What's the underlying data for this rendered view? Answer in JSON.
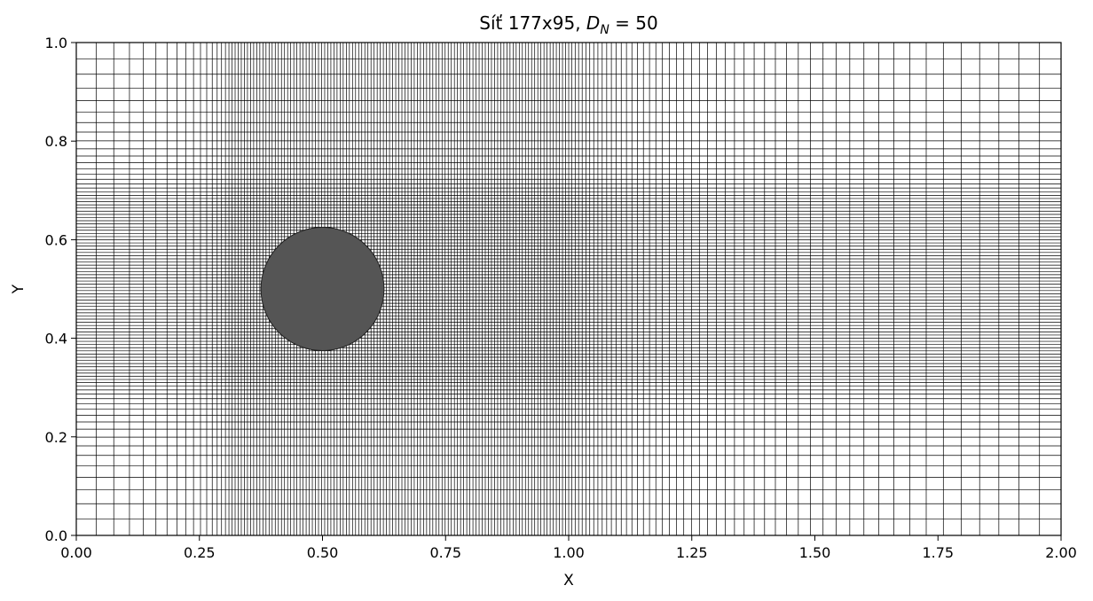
{
  "title": {
    "prefix": "Síť 177x95, ",
    "symbol": "D",
    "subscript": "N",
    "suffix": " = 50"
  },
  "chart_data": {
    "type": "mesh",
    "title": "Síť 177x95, D_N = 50",
    "xlabel": "X",
    "ylabel": "Y",
    "xlim": [
      0.0,
      2.0
    ],
    "ylim": [
      0.0,
      1.0
    ],
    "grid_dimensions": {
      "nx": 177,
      "ny": 95
    },
    "xticks": [
      "0.00",
      "0.25",
      "0.50",
      "0.75",
      "1.00",
      "1.25",
      "1.50",
      "1.75",
      "2.00"
    ],
    "yticks": [
      "0.0",
      "0.2",
      "0.4",
      "0.6",
      "0.8",
      "1.0"
    ],
    "refined_region_x": [
      0.31,
      1.0
    ],
    "refined_region_y": [
      0.31,
      0.69
    ],
    "obstacle": {
      "shape": "circle",
      "center": [
        0.5,
        0.5
      ],
      "diameter": 0.25,
      "fill": "#555555"
    },
    "line_color": "#000000"
  }
}
